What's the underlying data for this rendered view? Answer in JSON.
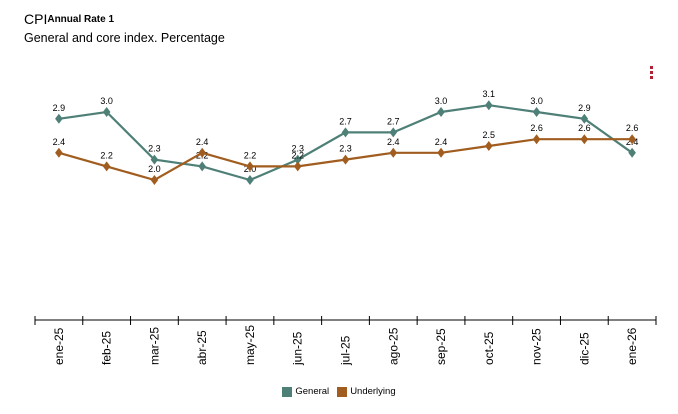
{
  "header": {
    "title_main": "CPI",
    "title_sup": "Annual Rate 1",
    "subtitle": "General and core index. Percentage"
  },
  "menu": {
    "icon": "more-vertical-icon",
    "color": "#b22234"
  },
  "chart_data": {
    "type": "line",
    "categories": [
      "ene-25",
      "feb-25",
      "mar-25",
      "abr-25",
      "may-25",
      "jun-25",
      "jul-25",
      "ago-25",
      "sep-25",
      "oct-25",
      "nov-25",
      "dic-25",
      "ene-26"
    ],
    "series": [
      {
        "name": "General",
        "color": "#4e8077",
        "values": [
          2.9,
          3.0,
          2.3,
          2.2,
          2.0,
          2.3,
          2.7,
          2.7,
          3.0,
          3.1,
          3.0,
          2.9,
          2.4
        ]
      },
      {
        "name": "Underlying",
        "color": "#a15d1f",
        "values": [
          2.4,
          2.2,
          2.0,
          2.4,
          2.2,
          2.2,
          2.3,
          2.4,
          2.4,
          2.5,
          2.6,
          2.6,
          2.6
        ]
      }
    ],
    "ylim": [
      0,
      3.5
    ],
    "grid": false,
    "legend_position": "bottom"
  }
}
